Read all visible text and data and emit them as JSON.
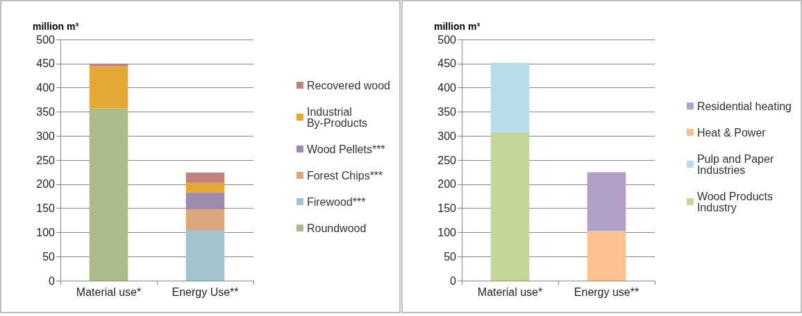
{
  "chart_data": [
    {
      "type": "bar",
      "ylabel": "million m³",
      "categories": [
        "Material use*",
        "Energy Use**"
      ],
      "stacked": true,
      "ylim": [
        0,
        500
      ],
      "yticks": [
        0,
        50,
        100,
        150,
        200,
        250,
        300,
        350,
        400,
        450,
        500
      ],
      "grid": "y",
      "legend": "right",
      "series": [
        {
          "name": "Roundwood",
          "color": "#aabd89",
          "values": [
            357,
            null
          ]
        },
        {
          "name": "Firewood***",
          "color": "#a3c4cc",
          "values": [
            null,
            105
          ]
        },
        {
          "name": "Forest Chips***",
          "color": "#dca77c",
          "values": [
            null,
            43
          ]
        },
        {
          "name": "Wood Pellets***",
          "color": "#9e8cae",
          "values": [
            null,
            35
          ]
        },
        {
          "name": "Industrial By-Products",
          "color": "#e3a835",
          "values": [
            88,
            20
          ]
        },
        {
          "name": "Recovered wood",
          "color": "#c0817f",
          "values": [
            5,
            21
          ]
        }
      ]
    },
    {
      "type": "bar",
      "ylabel": "million m³",
      "categories": [
        "Material use*",
        "Energy use**"
      ],
      "stacked": true,
      "ylim": [
        0,
        500
      ],
      "yticks": [
        0,
        50,
        100,
        150,
        200,
        250,
        300,
        350,
        400,
        450,
        500
      ],
      "grid": "y",
      "legend": "right",
      "series": [
        {
          "name": "Wood Products Industry",
          "color": "#c4d79b",
          "values": [
            308,
            null
          ]
        },
        {
          "name": "Pulp and Paper Industries",
          "color": "#b7dde8",
          "values": [
            144,
            null
          ]
        },
        {
          "name": "Heat & Power",
          "color": "#fac090",
          "values": [
            null,
            103
          ]
        },
        {
          "name": "Residential heating",
          "color": "#b1a0c7",
          "values": [
            null,
            122
          ]
        }
      ]
    }
  ]
}
